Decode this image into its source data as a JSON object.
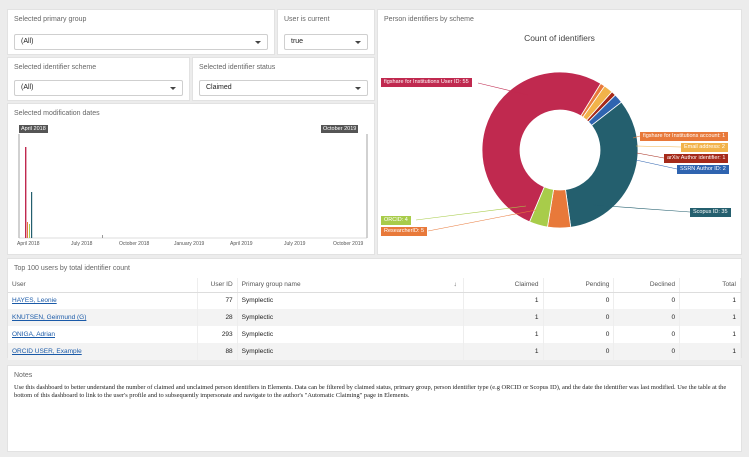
{
  "filters": {
    "primary_group": {
      "title": "Selected primary group",
      "value": "(All)"
    },
    "user_current": {
      "title": "User is current",
      "value": "true"
    },
    "identifier_scheme": {
      "title": "Selected identifier scheme",
      "value": "(All)"
    },
    "identifier_status": {
      "title": "Selected identifier status",
      "value": "Claimed"
    }
  },
  "mod_dates": {
    "title": "Selected modification dates",
    "start_tag": "April 2018",
    "end_tag": "October 2019",
    "axis_labels": [
      "April 2018",
      "July 2018",
      "October 2018",
      "January 2019",
      "April 2019",
      "July 2019",
      "October 2019"
    ]
  },
  "pie_panel": {
    "title": "Person identifiers by scheme",
    "chart_title": "Count of identifiers"
  },
  "chart_data": {
    "type": "pie",
    "title": "Count of identifiers",
    "slices": [
      {
        "label": "figshare for Institutions User ID: 55",
        "value": 55,
        "color": "#c0294f"
      },
      {
        "label": "figshare for Institutions account: 1",
        "value": 1,
        "color": "#e8793a"
      },
      {
        "label": "Email address: 2",
        "value": 2,
        "color": "#f2b34a"
      },
      {
        "label": "arXiv Author identifier: 1",
        "value": 1,
        "color": "#a52a1a"
      },
      {
        "label": "SSRN Author ID: 2",
        "value": 2,
        "color": "#2f64b0"
      },
      {
        "label": "Scopus ID: 35",
        "value": 35,
        "color": "#245f6e"
      },
      {
        "label": "ResearcherID: 5",
        "value": 5,
        "color": "#e8793a"
      },
      {
        "label": "ORCID: 4",
        "value": 4,
        "color": "#a8cc4a"
      }
    ]
  },
  "users_table": {
    "title": "Top 100 users by total identifier count",
    "sort_icon": "↓",
    "columns": [
      "User",
      "User ID",
      "Primary group name",
      "Claimed",
      "Pending",
      "Declined",
      "Total"
    ],
    "rows": [
      {
        "user": "HAYES, Leonie",
        "id": "77",
        "group": "Symplectic",
        "claimed": "1",
        "pending": "0",
        "declined": "0",
        "total": "1"
      },
      {
        "user": "KNUTSEN, Geirmund (G)",
        "id": "28",
        "group": "Symplectic",
        "claimed": "1",
        "pending": "0",
        "declined": "0",
        "total": "1"
      },
      {
        "user": "ONIGA, Adrian",
        "id": "293",
        "group": "Symplectic",
        "claimed": "1",
        "pending": "0",
        "declined": "0",
        "total": "1"
      },
      {
        "user": "ORCID USER, Example",
        "id": "88",
        "group": "Symplectic",
        "claimed": "1",
        "pending": "0",
        "declined": "0",
        "total": "1"
      }
    ]
  },
  "notes": {
    "title": "Notes",
    "text": "Use this dashboard to better understand the number of claimed and unclaimed person identifiers in Elements. Data can be filtered by claimed status, primary group, person identifier type (e.g ORCID or Scopus ID), and the date the identifier was last modified. Use the table at the bottom of this dashboard to link to the user's profile and to subsequently impersonate and navigate to the author's \"Automatic Claiming\" page in Elements."
  }
}
